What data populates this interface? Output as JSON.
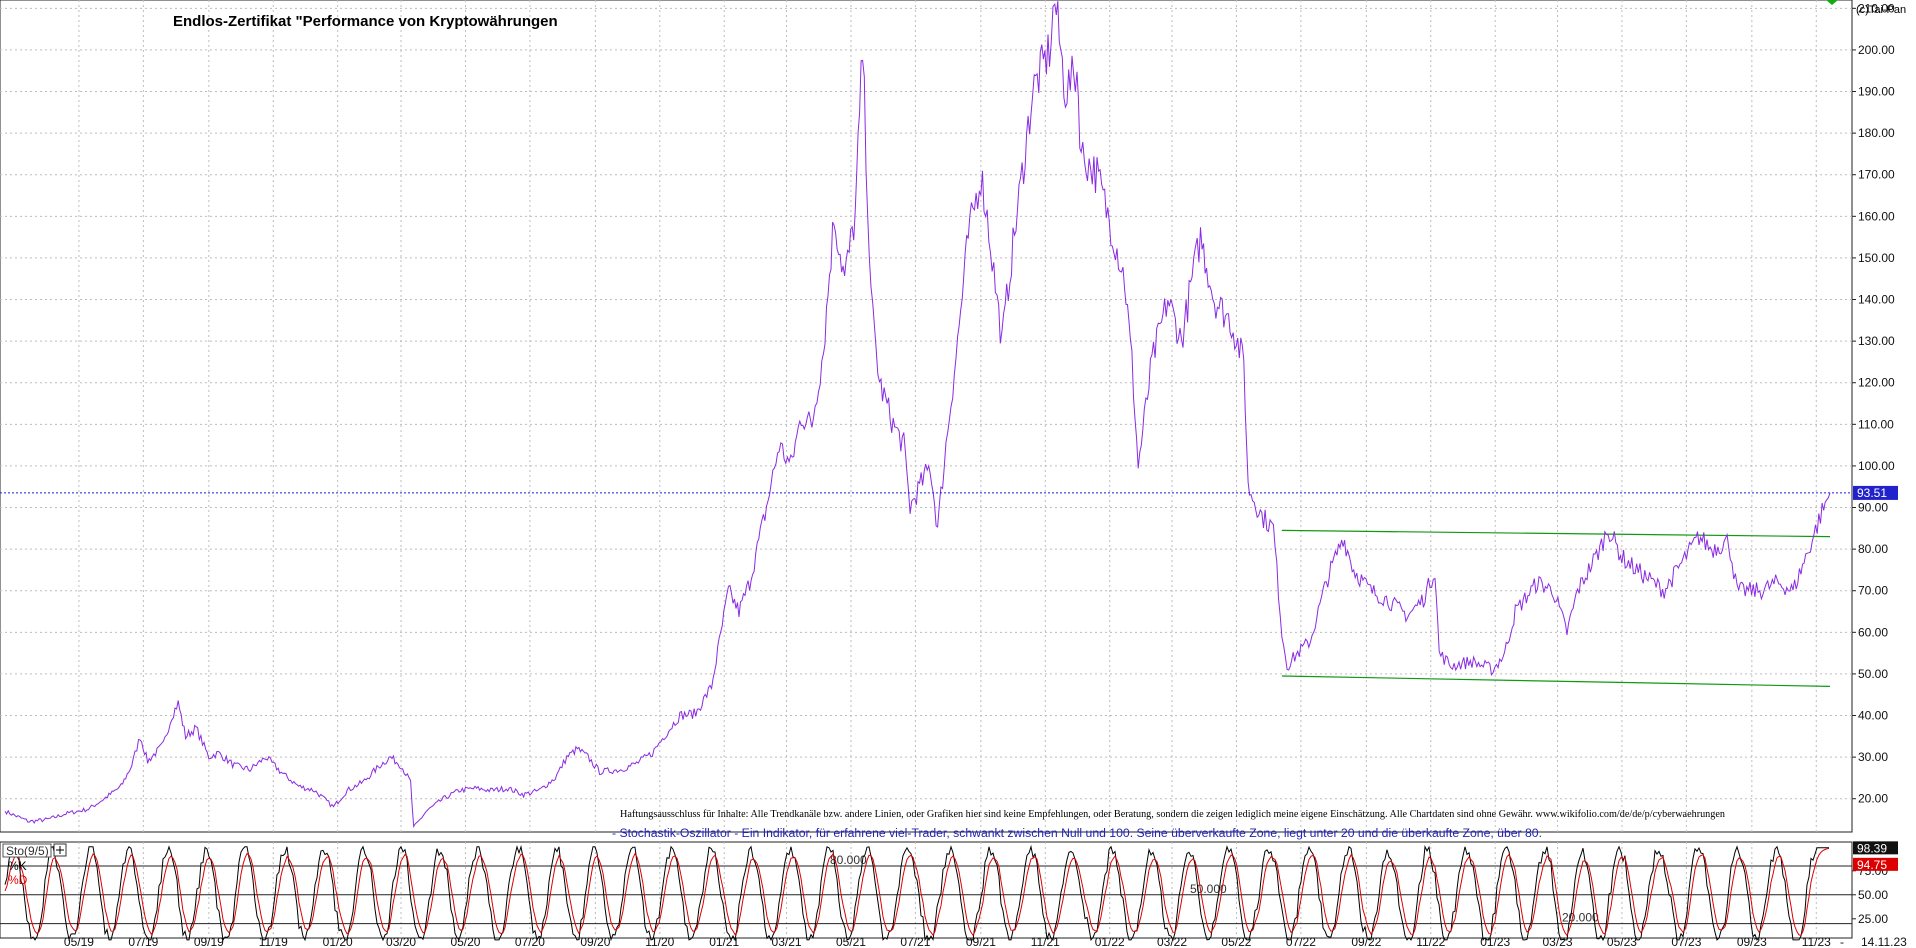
{
  "chart_data": [
    {
      "type": "line",
      "title": "Endlos-Zertifikat \"Performance von Kryptowährungen",
      "copyright": "(c)Tai-Pan",
      "xlabel": "",
      "ylabel": "",
      "grid": true,
      "legend": "none",
      "ylim": [
        12,
        212
      ],
      "y_ticks": [
        "20.00",
        "30.00",
        "40.00",
        "50.00",
        "60.00",
        "70.00",
        "80.00",
        "90.00",
        "100.00",
        "110.00",
        "120.00",
        "130.00",
        "140.00",
        "150.00",
        "160.00",
        "170.00",
        "180.00",
        "190.00",
        "200.00",
        "210.00"
      ],
      "x_tick_labels": [
        "05/19",
        "07/19",
        "09/19",
        "11/19",
        "01/20",
        "03/20",
        "05/20",
        "07/20",
        "09/20",
        "11/20",
        "01/21",
        "03/21",
        "05/21",
        "07/21",
        "09/21",
        "11/21",
        "01/22",
        "03/22",
        "05/22",
        "07/22",
        "09/22",
        "11/22",
        "01/23",
        "03/23",
        "05/23",
        "07/23",
        "09/23",
        "11/23"
      ],
      "x_date_range": [
        "2019-02-20",
        "2023-11-14"
      ],
      "last_date_label": "14.11.23",
      "series": [
        {
          "color": "#8a2be2",
          "points": [
            [
              "2019-02-20",
              17
            ],
            [
              "2019-03-15",
              14.5
            ],
            [
              "2019-04-01",
              15
            ],
            [
              "2019-04-20",
              16.5
            ],
            [
              "2019-05-10",
              17.5
            ],
            [
              "2019-05-25",
              20
            ],
            [
              "2019-06-10",
              23
            ],
            [
              "2019-06-20",
              28
            ],
            [
              "2019-06-28",
              35
            ],
            [
              "2019-07-05",
              29
            ],
            [
              "2019-07-20",
              33
            ],
            [
              "2019-07-28",
              40
            ],
            [
              "2019-08-03",
              43
            ],
            [
              "2019-08-10",
              35
            ],
            [
              "2019-08-20",
              37
            ],
            [
              "2019-09-01",
              30
            ],
            [
              "2019-09-10",
              31
            ],
            [
              "2019-09-25",
              28
            ],
            [
              "2019-10-10",
              27
            ],
            [
              "2019-10-25",
              30
            ],
            [
              "2019-11-10",
              26
            ],
            [
              "2019-11-25",
              23
            ],
            [
              "2019-12-10",
              22
            ],
            [
              "2019-12-28",
              18
            ],
            [
              "2020-01-10",
              22
            ],
            [
              "2020-01-25",
              24
            ],
            [
              "2020-02-10",
              28
            ],
            [
              "2020-02-20",
              30
            ],
            [
              "2020-03-01",
              28
            ],
            [
              "2020-03-10",
              24
            ],
            [
              "2020-03-13",
              13
            ],
            [
              "2020-03-25",
              17
            ],
            [
              "2020-04-10",
              20
            ],
            [
              "2020-04-25",
              22
            ],
            [
              "2020-05-10",
              22.5
            ],
            [
              "2020-05-25",
              22
            ],
            [
              "2020-06-10",
              22.5
            ],
            [
              "2020-06-25",
              21
            ],
            [
              "2020-07-10",
              22
            ],
            [
              "2020-07-25",
              25
            ],
            [
              "2020-08-05",
              30
            ],
            [
              "2020-08-15",
              32
            ],
            [
              "2020-08-25",
              30
            ],
            [
              "2020-09-05",
              26.5
            ],
            [
              "2020-09-25",
              27
            ],
            [
              "2020-10-10",
              28.5
            ],
            [
              "2020-10-25",
              31
            ],
            [
              "2020-11-05",
              35
            ],
            [
              "2020-11-20",
              40
            ],
            [
              "2020-12-05",
              40.5
            ],
            [
              "2020-12-20",
              47
            ],
            [
              "2021-01-05",
              70
            ],
            [
              "2021-01-15",
              65
            ],
            [
              "2021-01-25",
              72
            ],
            [
              "2021-02-10",
              90
            ],
            [
              "2021-02-22",
              105
            ],
            [
              "2021-03-05",
              100
            ],
            [
              "2021-03-15",
              112
            ],
            [
              "2021-03-25",
              110
            ],
            [
              "2021-04-05",
              128
            ],
            [
              "2021-04-15",
              160
            ],
            [
              "2021-04-25",
              145
            ],
            [
              "2021-05-05",
              160
            ],
            [
              "2021-05-12",
              200
            ],
            [
              "2021-05-20",
              140
            ],
            [
              "2021-05-28",
              120
            ],
            [
              "2021-06-10",
              110
            ],
            [
              "2021-06-20",
              105
            ],
            [
              "2021-06-26",
              90
            ],
            [
              "2021-07-05",
              95
            ],
            [
              "2021-07-15",
              100
            ],
            [
              "2021-07-22",
              85
            ],
            [
              "2021-07-30",
              105
            ],
            [
              "2021-08-10",
              130
            ],
            [
              "2021-08-20",
              155
            ],
            [
              "2021-09-01",
              170
            ],
            [
              "2021-09-07",
              160
            ],
            [
              "2021-09-21",
              130
            ],
            [
              "2021-09-30",
              150
            ],
            [
              "2021-10-10",
              170
            ],
            [
              "2021-10-20",
              190
            ],
            [
              "2021-11-05",
              200
            ],
            [
              "2021-11-10",
              212
            ],
            [
              "2021-11-20",
              190
            ],
            [
              "2021-12-01",
              195
            ],
            [
              "2021-12-05",
              175
            ],
            [
              "2021-12-20",
              170
            ],
            [
              "2022-01-05",
              155
            ],
            [
              "2022-01-15",
              145
            ],
            [
              "2022-01-22",
              125
            ],
            [
              "2022-01-28",
              100
            ],
            [
              "2022-02-10",
              125
            ],
            [
              "2022-02-25",
              140
            ],
            [
              "2022-03-10",
              130
            ],
            [
              "2022-03-20",
              145
            ],
            [
              "2022-03-28",
              155
            ],
            [
              "2022-04-10",
              140
            ],
            [
              "2022-04-25",
              135
            ],
            [
              "2022-05-08",
              125
            ],
            [
              "2022-05-12",
              95
            ],
            [
              "2022-05-25",
              88
            ],
            [
              "2022-06-05",
              85
            ],
            [
              "2022-06-13",
              60
            ],
            [
              "2022-06-18",
              52
            ],
            [
              "2022-06-28",
              55
            ],
            [
              "2022-07-10",
              58
            ],
            [
              "2022-07-25",
              72
            ],
            [
              "2022-08-10",
              83
            ],
            [
              "2022-08-20",
              75
            ],
            [
              "2022-09-05",
              70
            ],
            [
              "2022-09-20",
              68
            ],
            [
              "2022-10-10",
              64
            ],
            [
              "2022-10-25",
              68
            ],
            [
              "2022-11-05",
              75
            ],
            [
              "2022-11-09",
              55
            ],
            [
              "2022-11-20",
              52
            ],
            [
              "2022-12-10",
              53
            ],
            [
              "2022-12-30",
              51
            ],
            [
              "2023-01-10",
              55
            ],
            [
              "2023-01-20",
              65
            ],
            [
              "2023-02-10",
              72
            ],
            [
              "2023-02-25",
              70
            ],
            [
              "2023-03-10",
              60
            ],
            [
              "2023-03-20",
              70
            ],
            [
              "2023-04-10",
              80
            ],
            [
              "2023-04-18",
              85
            ],
            [
              "2023-05-01",
              78
            ],
            [
              "2023-05-15",
              75
            ],
            [
              "2023-06-10",
              70
            ],
            [
              "2023-06-25",
              76
            ],
            [
              "2023-07-13",
              83
            ],
            [
              "2023-07-25",
              80
            ],
            [
              "2023-08-10",
              82
            ],
            [
              "2023-08-18",
              70
            ],
            [
              "2023-09-10",
              70
            ],
            [
              "2023-09-25",
              72
            ],
            [
              "2023-10-10",
              70
            ],
            [
              "2023-10-25",
              80
            ],
            [
              "2023-11-05",
              88
            ],
            [
              "2023-11-14",
              93.51
            ]
          ]
        }
      ],
      "trendlines": [
        {
          "color": "#119911",
          "from": [
            "2022-06-13",
            84.5
          ],
          "to": [
            "2023-11-14",
            83
          ]
        },
        {
          "color": "#119911",
          "from": [
            "2022-06-13",
            49.5
          ],
          "to": [
            "2023-11-14",
            47
          ]
        }
      ],
      "last_value": {
        "label": "93.51",
        "value": 93.51,
        "color": "#2222cc"
      },
      "annotations": {
        "disclaimer": "Haftungsausschluss für Inhalte: Alle Trendkanäle bzw. andere Linien, oder Grafiken hier sind keine Empfehlungen, oder Beratung, sondern die zeigen lediglich meine eigene Einschätzung. Alle Chartdaten sind ohne Gewähr.  www.wikifolio.com/de/de/p/cyberwaehrungen",
        "stochastic_note": "- Stochastik-Oszillator - Ein Indikator, für erfahrene viel-Trader, schwankt zwischen Null und 100. Seine überverkaufte Zone, liegt unter 20 und die überkaufte Zone, über 80."
      }
    },
    {
      "type": "line",
      "title": "Sto(9/5)",
      "ylim": [
        5,
        105
      ],
      "y_ticks": [
        "25.00",
        "50.00",
        "75.00"
      ],
      "levels": [
        {
          "label": "80.000",
          "value": 80
        },
        {
          "label": "50.000",
          "value": 50
        },
        {
          "label": "20.000",
          "value": 20
        }
      ],
      "series": [
        {
          "name": "%K",
          "color": "#000000",
          "last_label": "98.39",
          "last_value": 98.39
        },
        {
          "name": "%D",
          "color": "#dd0000",
          "last_label": "94.75",
          "last_value": 94.75
        }
      ]
    }
  ]
}
